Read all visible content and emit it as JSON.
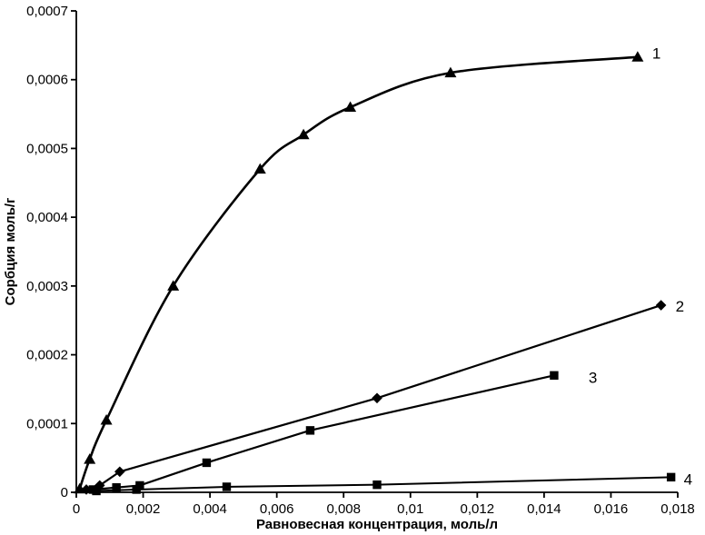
{
  "chart_data": {
    "type": "line",
    "title": "",
    "xlabel": "Равновесная концентрация, моль/л",
    "ylabel": "Сорбция моль/г",
    "xlim": [
      0,
      0.018
    ],
    "ylim": [
      0,
      0.0007
    ],
    "grid": false,
    "legend_position": "inline-right-labels",
    "decimal_separator": ",",
    "x_ticks": {
      "values": [
        0,
        0.002,
        0.004,
        0.006,
        0.008,
        0.01,
        0.012,
        0.014,
        0.016,
        0.018
      ],
      "labels": [
        "0",
        "0,002",
        "0,004",
        "0,006",
        "0,008",
        "0,01",
        "0,012",
        "0,014",
        "0,016",
        "0,018"
      ]
    },
    "y_ticks": {
      "values": [
        0,
        0.0001,
        0.0002,
        0.0003,
        0.0004,
        0.0005,
        0.0006,
        0.0007
      ],
      "labels": [
        "0",
        "0,0001",
        "0,0002",
        "0,0003",
        "0,0004",
        "0,0005",
        "0,0006",
        "0,0007"
      ]
    },
    "series": [
      {
        "name": "1",
        "marker": "triangle",
        "smooth": true,
        "line_width": 2.6,
        "label_dx": 16,
        "label_dy": -3,
        "points": [
          [
            0.0001,
            5e-06
          ],
          [
            0.0004,
            4.8e-05
          ],
          [
            0.0009,
            0.000105
          ],
          [
            0.0029,
            0.0003
          ],
          [
            0.0055,
            0.00047
          ],
          [
            0.0068,
            0.00052
          ],
          [
            0.0082,
            0.00056
          ],
          [
            0.0112,
            0.00061
          ],
          [
            0.0168,
            0.000633
          ]
        ]
      },
      {
        "name": "2",
        "marker": "diamond",
        "smooth": false,
        "line_width": 2.2,
        "label_dx": 16,
        "label_dy": 2,
        "points": [
          [
            0.0003,
            4e-06
          ],
          [
            0.0007,
            1e-05
          ],
          [
            0.0013,
            3e-05
          ],
          [
            0.009,
            0.000137
          ],
          [
            0.0175,
            0.000272
          ]
        ]
      },
      {
        "name": "3",
        "marker": "square",
        "smooth": false,
        "line_width": 2.2,
        "label_dx": 38,
        "label_dy": 3,
        "points": [
          [
            0.0005,
            4e-06
          ],
          [
            0.0012,
            7e-06
          ],
          [
            0.0019,
            1e-05
          ],
          [
            0.0039,
            4.3e-05
          ],
          [
            0.007,
            9e-05
          ],
          [
            0.0143,
            0.00017
          ]
        ]
      },
      {
        "name": "4",
        "marker": "square",
        "smooth": false,
        "line_width": 2.0,
        "label_dx": 14,
        "label_dy": 3,
        "points": [
          [
            0.0006,
            2e-06
          ],
          [
            0.0018,
            4e-06
          ],
          [
            0.0045,
            8e-06
          ],
          [
            0.009,
            1.1e-05
          ],
          [
            0.0178,
            2.2e-05
          ]
        ]
      }
    ],
    "colors": {
      "axis": "#000000",
      "series": "#000000",
      "background": "#ffffff"
    }
  }
}
